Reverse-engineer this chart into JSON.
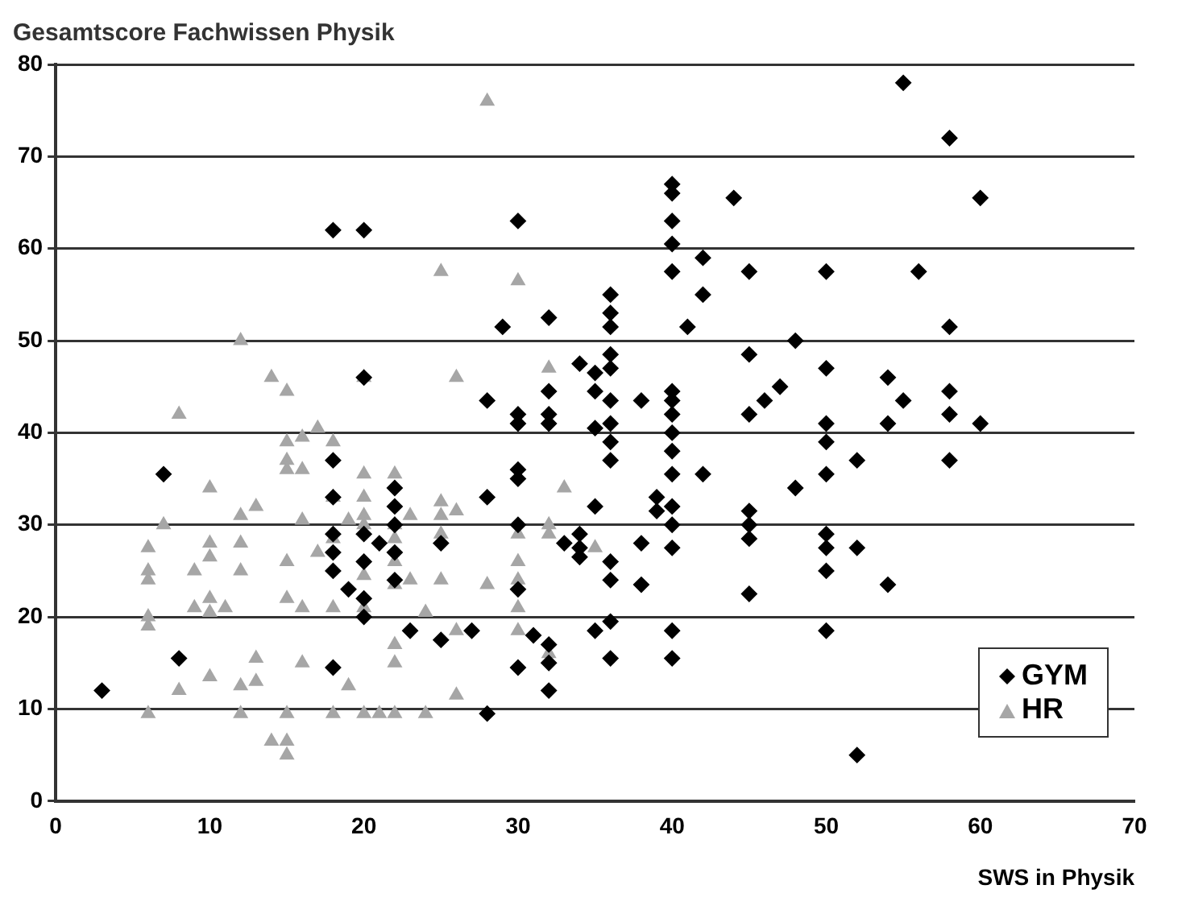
{
  "chart_data": {
    "type": "scatter",
    "title": "Gesamtscore Fachwissen Physik",
    "xlabel": "SWS in Physik",
    "xlim": [
      0,
      70
    ],
    "xticks": [
      0,
      10,
      20,
      30,
      40,
      50,
      60,
      70
    ],
    "ylim": [
      0,
      80
    ],
    "yticks": [
      0,
      10,
      20,
      30,
      40,
      50,
      60,
      70,
      80
    ],
    "grid": "y",
    "legend": "bottom right",
    "series": [
      {
        "name": "GYM",
        "color": "#000000",
        "marker": "diamond",
        "x": [
          3,
          7,
          8,
          18,
          20,
          18,
          18,
          18,
          18,
          18,
          18,
          19,
          20,
          20,
          20,
          20,
          20,
          21,
          22,
          22,
          22,
          22,
          22,
          23,
          25,
          25,
          27,
          28,
          28,
          28,
          29,
          30,
          30,
          30,
          30,
          30,
          30,
          30,
          30,
          31,
          32,
          32,
          32,
          32,
          32,
          32,
          32,
          33,
          34,
          34,
          34,
          34,
          35,
          35,
          35,
          35,
          35,
          36,
          36,
          36,
          36,
          36,
          36,
          36,
          36,
          36,
          36,
          36,
          36,
          36,
          38,
          38,
          38,
          39,
          39,
          40,
          40,
          40,
          40,
          40,
          40,
          40,
          40,
          40,
          40,
          40,
          40,
          40,
          40,
          40,
          40,
          41,
          42,
          42,
          42,
          44,
          45,
          45,
          45,
          45,
          45,
          45,
          45,
          46,
          47,
          48,
          48,
          50,
          50,
          50,
          50,
          50,
          50,
          50,
          50,
          50,
          52,
          52,
          52,
          54,
          54,
          54,
          55,
          55,
          56,
          58,
          58,
          58,
          58,
          58,
          60,
          60
        ],
        "values": [
          12,
          35.5,
          15.5,
          62,
          62,
          14.5,
          37,
          33,
          29,
          27,
          25,
          23,
          46,
          29,
          26,
          22,
          20,
          28,
          34,
          32,
          30,
          27,
          24,
          18.5,
          17.5,
          28,
          18.5,
          33,
          43.5,
          9.5,
          51.5,
          63,
          42,
          41,
          36,
          35,
          30,
          23,
          14.5,
          18,
          52.5,
          44.5,
          42,
          41,
          17,
          15,
          12,
          28,
          47.5,
          29,
          27.5,
          26.5,
          46.5,
          44.5,
          40.5,
          32,
          18.5,
          55,
          53,
          51.5,
          48.5,
          47,
          43.5,
          41,
          39,
          37,
          26,
          19.5,
          15.5,
          24,
          28,
          43.5,
          23.5,
          33,
          31.5,
          67,
          66,
          63,
          60.5,
          57.5,
          44.5,
          43.5,
          42,
          40,
          38,
          35.5,
          32,
          30,
          27.5,
          18.5,
          15.5,
          51.5,
          59,
          55,
          35.5,
          65.5,
          57.5,
          48.5,
          42,
          31.5,
          30,
          28.5,
          22.5,
          43.5,
          45,
          50,
          34,
          57.5,
          47,
          41,
          39,
          35.5,
          29,
          27.5,
          25,
          18.5,
          37,
          27.5,
          5,
          46,
          41,
          23.5,
          43.5,
          78,
          57.5,
          72,
          51.5,
          44.5,
          42,
          37,
          65.5,
          41
        ]
      },
      {
        "name": "HR",
        "color": "#a6a6a6",
        "marker": "triangle",
        "x": [
          6,
          6,
          6,
          6,
          6,
          6,
          7,
          8,
          8,
          9,
          9,
          10,
          10,
          10,
          10,
          10,
          10,
          11,
          12,
          12,
          12,
          12,
          12,
          12,
          13,
          13,
          13,
          14,
          14,
          15,
          15,
          15,
          15,
          15,
          15,
          15,
          15,
          15,
          16,
          16,
          16,
          16,
          16,
          17,
          17,
          18,
          18,
          18,
          18,
          18,
          19,
          19,
          20,
          20,
          20,
          20,
          20,
          20,
          20,
          20,
          21,
          22,
          22,
          22,
          22,
          22,
          22,
          22,
          22,
          23,
          23,
          24,
          24,
          25,
          25,
          25,
          25,
          25,
          26,
          26,
          26,
          26,
          28,
          28,
          30,
          30,
          30,
          30,
          30,
          30,
          32,
          32,
          32,
          32,
          33,
          35
        ],
        "values": [
          27.5,
          25,
          24,
          20,
          19,
          9.5,
          30,
          42,
          12,
          25,
          21,
          34,
          28,
          26.5,
          22,
          20.5,
          13.5,
          21,
          50,
          31,
          28,
          25,
          12.5,
          9.5,
          32,
          15.5,
          13,
          46,
          6.5,
          44.5,
          39,
          37,
          36,
          26,
          22,
          9.5,
          6.5,
          5,
          39.5,
          36,
          30.5,
          21,
          15,
          40.5,
          27,
          39,
          33,
          28.5,
          21,
          9.5,
          30.5,
          12.5,
          46,
          35.5,
          33,
          31,
          30,
          24.5,
          21,
          9.5,
          9.5,
          35.5,
          30,
          28.5,
          26,
          23.5,
          17,
          15,
          9.5,
          31,
          24,
          20.5,
          9.5,
          57.5,
          32.5,
          31,
          29,
          24,
          46,
          31.5,
          18.5,
          11.5,
          76,
          23.5,
          56.5,
          29,
          26,
          24,
          21,
          18.5,
          47,
          30,
          29,
          16,
          34,
          27.5
        ]
      }
    ]
  }
}
